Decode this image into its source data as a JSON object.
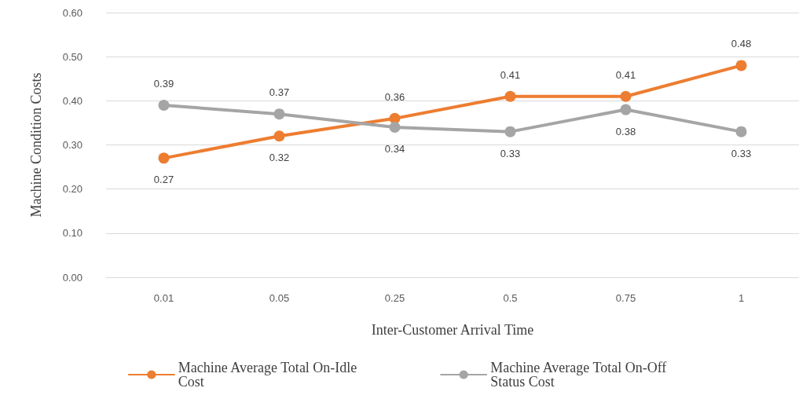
{
  "chart_data": {
    "type": "line",
    "xlabel": "Inter-Customer Arrival Time",
    "ylabel": "Machine Condition Costs",
    "categories": [
      "0.01",
      "0.05",
      "0.25",
      "0.5",
      "0.75",
      "1"
    ],
    "series": [
      {
        "name": "Machine Average Total On-Idle Cost",
        "color": "#ed7d31",
        "values": [
          0.27,
          0.32,
          0.36,
          0.41,
          0.41,
          0.48
        ]
      },
      {
        "name": "Machine Average Total On-Off Status Cost",
        "color": "#a5a5a5",
        "values": [
          0.39,
          0.37,
          0.34,
          0.33,
          0.38,
          0.33
        ]
      }
    ],
    "ylim": [
      0,
      0.6
    ],
    "yticks": [
      {
        "value": 0,
        "label": "0.00"
      },
      {
        "value": 0.1,
        "label": "0.10"
      },
      {
        "value": 0.2,
        "label": "0.20"
      },
      {
        "value": 0.3,
        "label": "0.30"
      },
      {
        "value": 0.4,
        "label": "0.40"
      },
      {
        "value": 0.5,
        "label": "0.50"
      },
      {
        "value": 0.6,
        "label": "0.60"
      }
    ],
    "grid": "y",
    "legend": "bottom",
    "marker": "circle",
    "line_style": "solid",
    "data_labels": true
  }
}
